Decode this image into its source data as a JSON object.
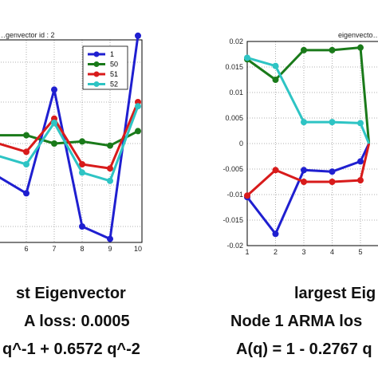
{
  "chart_data": [
    {
      "type": "line",
      "title": "…genvector id : 2",
      "x_ticks": [
        6,
        7,
        8,
        9,
        10
      ],
      "y_ticks": [],
      "grid": true,
      "legend_placement": "top-right",
      "series": [
        {
          "name": "1",
          "color": "#1f1fd0",
          "x": [
            6,
            7,
            8,
            9,
            10
          ],
          "y": [
            -0.012,
            0.013,
            -0.02,
            -0.023,
            0.026
          ]
        },
        {
          "name": "50",
          "color": "#1a7a1a",
          "x": [
            6,
            7,
            8,
            9,
            10
          ],
          "y": [
            0.002,
            0.0,
            0.0005,
            -0.0005,
            0.003
          ]
        },
        {
          "name": "51",
          "color": "#d81b1b",
          "x": [
            6,
            7,
            8,
            9,
            10
          ],
          "y": [
            -0.002,
            0.006,
            -0.005,
            -0.006,
            0.01
          ]
        },
        {
          "name": "52",
          "color": "#2ec4c4",
          "x": [
            6,
            7,
            8,
            9,
            10
          ],
          "y": [
            -0.005,
            0.005,
            -0.007,
            -0.009,
            0.009
          ]
        }
      ]
    },
    {
      "type": "line",
      "title": "eigenvecto…",
      "x_ticks": [
        1,
        2,
        3,
        4,
        5
      ],
      "y_ticks": [
        0.02,
        0.015,
        0.01,
        0.005,
        0,
        -0.005,
        -0.01,
        -0.015,
        -0.02
      ],
      "ylim": [
        -0.02,
        0.02
      ],
      "grid": true,
      "series": [
        {
          "color": "#1f1fd0",
          "x": [
            1,
            2,
            3,
            4,
            5
          ],
          "y": [
            -0.0105,
            -0.0177,
            -0.0052,
            -0.0055,
            -0.0035
          ]
        },
        {
          "color": "#1a7a1a",
          "x": [
            1,
            2,
            3,
            4,
            5
          ],
          "y": [
            0.0165,
            0.0125,
            0.0183,
            0.0183,
            0.0188
          ]
        },
        {
          "color": "#d81b1b",
          "x": [
            1,
            2,
            3,
            4,
            5
          ],
          "y": [
            -0.0102,
            -0.0052,
            -0.0075,
            -0.0075,
            -0.0072
          ]
        },
        {
          "color": "#2ec4c4",
          "x": [
            1,
            2,
            3,
            4,
            5
          ],
          "y": [
            0.0168,
            0.0152,
            0.0042,
            0.0042,
            0.004
          ]
        }
      ]
    }
  ],
  "captions": {
    "left": {
      "line1": "st Eigenvector",
      "line2": "A loss: 0.0005",
      "line3": "q^-1 + 0.6572 q^-2"
    },
    "right": {
      "line1": "largest Eig",
      "line2": "Node 1 ARMA los",
      "line3": "A(q) = 1 - 0.2767 q"
    }
  }
}
